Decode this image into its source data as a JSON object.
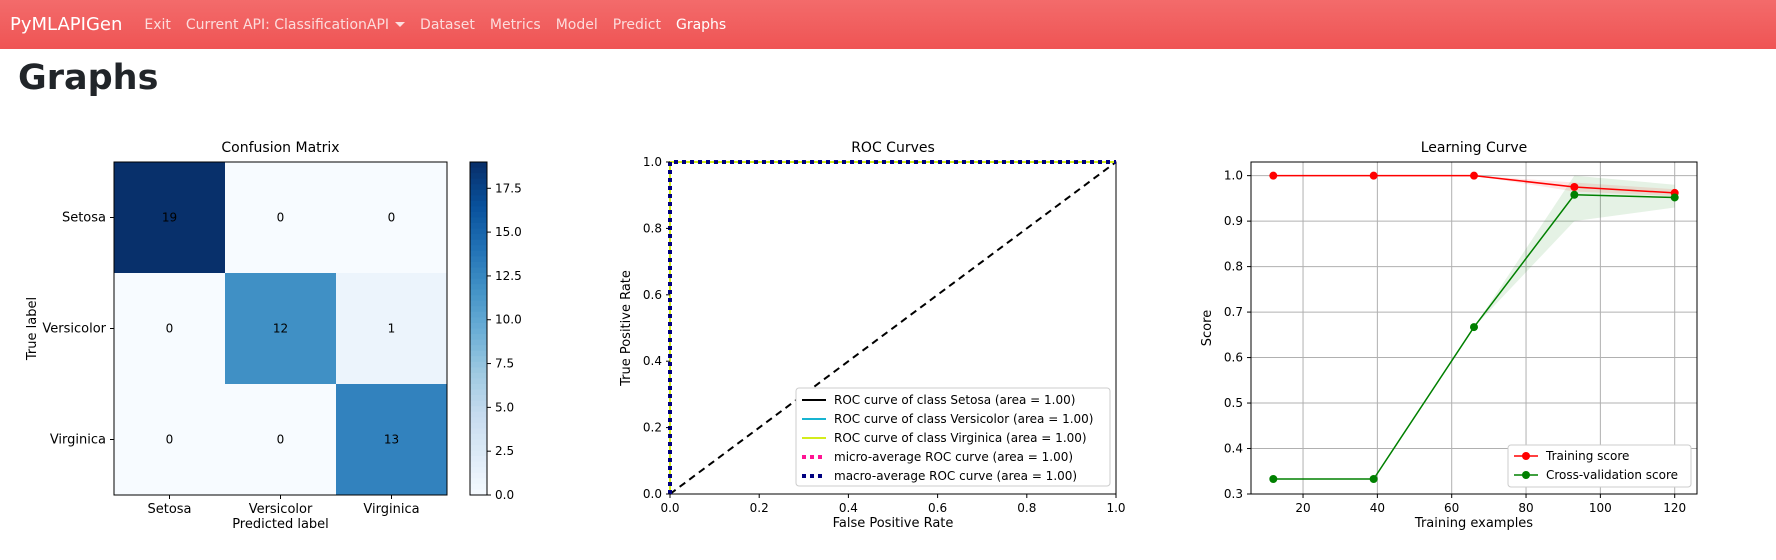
{
  "nav": {
    "brand": "PyMLAPIGen",
    "items": [
      {
        "label": "Exit"
      },
      {
        "label": "Current API: ClassificationAPI",
        "dropdown": true
      },
      {
        "label": "Dataset"
      },
      {
        "label": "Metrics"
      },
      {
        "label": "Model"
      },
      {
        "label": "Predict"
      },
      {
        "label": "Graphs",
        "active": true
      }
    ]
  },
  "page": {
    "title": "Graphs"
  },
  "chart_data": [
    {
      "type": "heatmap",
      "title": "Confusion Matrix",
      "xlabel": "Predicted label",
      "ylabel": "True label",
      "x_labels": [
        "Setosa",
        "Versicolor",
        "Virginica"
      ],
      "y_labels": [
        "Setosa",
        "Versicolor",
        "Virginica"
      ],
      "values": [
        [
          19,
          0,
          0
        ],
        [
          0,
          12,
          1
        ],
        [
          0,
          0,
          13
        ]
      ],
      "colormap": "Blues",
      "colorbar": {
        "range": [
          0,
          19
        ],
        "ticks": [
          "0.0",
          "2.5",
          "5.0",
          "7.5",
          "10.0",
          "12.5",
          "15.0",
          "17.5"
        ]
      }
    },
    {
      "type": "line",
      "title": "ROC Curves",
      "xlabel": "False Positive Rate",
      "ylabel": "True Positive Rate",
      "xlim": [
        0,
        1.0
      ],
      "ylim": [
        0,
        1.0
      ],
      "x_ticks": [
        "0.0",
        "0.2",
        "0.4",
        "0.6",
        "0.8",
        "1.0"
      ],
      "y_ticks": [
        "0.0",
        "0.2",
        "0.4",
        "0.6",
        "0.8",
        "1.0"
      ],
      "legend_position": "lower-right",
      "grid": false,
      "series": [
        {
          "name": "ROC curve of class Setosa (area = 1.00)",
          "color": "#000000",
          "style": "solid",
          "x": [
            0,
            0,
            1
          ],
          "y": [
            0,
            1,
            1
          ]
        },
        {
          "name": "ROC curve of class Versicolor (area = 1.00)",
          "color": "#17b4d1",
          "style": "solid",
          "x": [
            0,
            0,
            1
          ],
          "y": [
            0,
            1,
            1
          ]
        },
        {
          "name": "ROC curve of class Virginica (area = 1.00)",
          "color": "#d4ec1c",
          "style": "solid",
          "x": [
            0,
            0,
            1
          ],
          "y": [
            0,
            1,
            1
          ]
        },
        {
          "name": "micro-average ROC curve (area = 1.00)",
          "color": "#ff1493",
          "style": "dotted",
          "x": [
            0,
            0,
            1
          ],
          "y": [
            0,
            1,
            1
          ]
        },
        {
          "name": "macro-average ROC curve (area = 1.00)",
          "color": "#000080",
          "style": "dotted",
          "x": [
            0,
            0,
            1
          ],
          "y": [
            0,
            1,
            1
          ]
        }
      ],
      "reference_line": {
        "color": "#000000",
        "style": "dashed",
        "x": [
          0,
          1
        ],
        "y": [
          0,
          1
        ]
      }
    },
    {
      "type": "line",
      "title": "Learning Curve",
      "xlabel": "Training examples",
      "ylabel": "Score",
      "xlim": [
        6,
        126
      ],
      "ylim": [
        0.3,
        1.03
      ],
      "x_ticks": [
        "20",
        "40",
        "60",
        "80",
        "100",
        "120"
      ],
      "y_ticks": [
        "0.3",
        "0.4",
        "0.5",
        "0.6",
        "0.7",
        "0.8",
        "0.9",
        "1.0"
      ],
      "grid": true,
      "legend_position": "lower-right",
      "series": [
        {
          "name": "Training score",
          "color": "#ff0000",
          "x": [
            12,
            39,
            66,
            93,
            120
          ],
          "y": [
            1.0,
            1.0,
            1.0,
            0.975,
            0.962
          ],
          "band": [
            [
              1.0,
              1.0
            ],
            [
              1.0,
              1.0
            ],
            [
              1.0,
              1.0
            ],
            [
              0.965,
              0.985
            ],
            [
              0.955,
              0.97
            ]
          ]
        },
        {
          "name": "Cross-validation score",
          "color": "#008000",
          "x": [
            12,
            39,
            66,
            93,
            120
          ],
          "y": [
            0.333,
            0.333,
            0.667,
            0.958,
            0.952
          ],
          "band": [
            [
              0.333,
              0.333
            ],
            [
              0.333,
              0.333
            ],
            [
              0.667,
              0.667
            ],
            [
              0.9,
              1.0
            ],
            [
              0.93,
              0.98
            ]
          ]
        }
      ]
    }
  ]
}
